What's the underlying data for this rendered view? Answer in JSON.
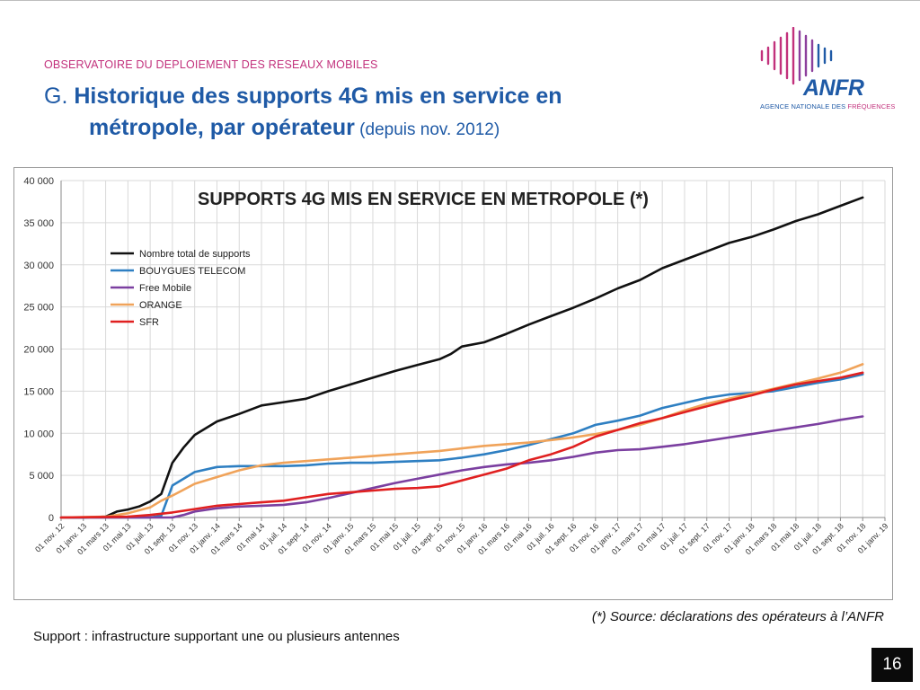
{
  "header": {
    "observatory": "OBSERVATOIRE DU DEPLOIEMENT DES RESEAUX MOBILES",
    "title_prefix": "G. ",
    "title_bold_1": "Historique des supports 4G mis en service en",
    "title_bold_2": "métropole, par opérateur",
    "title_light": " (depuis nov. 2012)"
  },
  "logo": {
    "word": "ANFR",
    "sub_1": "AGENCE NATIONALE DES ",
    "sub_2": "FRÉQUENCES",
    "colors": {
      "blue": "#1f5aa6",
      "pink": "#c2317c"
    }
  },
  "footer": {
    "source": "(*) Source: déclarations des opérateurs à l’ANFR",
    "note": "Support : infrastructure supportant une ou plusieurs antennes",
    "page_number": "16"
  },
  "chart_data": {
    "type": "line",
    "title": "SUPPORTS 4G MIS EN SERVICE EN METROPOLE (*)",
    "xlabel": "",
    "ylabel": "",
    "ylim": [
      0,
      40000
    ],
    "yticks": [
      0,
      5000,
      10000,
      15000,
      20000,
      25000,
      30000,
      35000,
      40000
    ],
    "ytick_labels": [
      "0",
      "5 000",
      "10 000",
      "15 000",
      "20 000",
      "25 000",
      "30 000",
      "35 000",
      "40 000"
    ],
    "grid": true,
    "legend_position": "top-left",
    "x_ticks": [
      "01 nov. 12",
      "01 janv. 13",
      "01 mars 13",
      "01 mai 13",
      "01 juil. 13",
      "01 sept. 13",
      "01 nov. 13",
      "01 janv. 14",
      "01 mars 14",
      "01 mai 14",
      "01 juil. 14",
      "01 sept. 14",
      "01 nov. 14",
      "01 janv. 15",
      "01 mars 15",
      "01 mai 15",
      "01 juil. 15",
      "01 sept. 15",
      "01 nov. 15",
      "01 janv. 16",
      "01 mars 16",
      "01 mai 16",
      "01 juil. 16",
      "01 sept. 16",
      "01 nov. 16",
      "01 janv. 17",
      "01 mars 17",
      "01 mai 17",
      "01 juil. 17",
      "01 sept. 17",
      "01 nov. 17",
      "01 janv. 18",
      "01 mars 18",
      "01 mai 18",
      "01 juil. 18",
      "01 sept. 18",
      "01 nov. 18",
      "01 janv. 19"
    ],
    "series": [
      {
        "name": "Nombre total de supports",
        "color": "#111111",
        "points": [
          [
            0,
            0
          ],
          [
            2,
            0
          ],
          [
            4,
            100
          ],
          [
            5,
            700
          ],
          [
            6,
            950
          ],
          [
            7,
            1300
          ],
          [
            8,
            1900
          ],
          [
            9,
            2800
          ],
          [
            10,
            6500
          ],
          [
            11,
            8300
          ],
          [
            12,
            9800
          ],
          [
            13,
            10600
          ],
          [
            14,
            11400
          ],
          [
            16,
            12300
          ],
          [
            18,
            13300
          ],
          [
            20,
            13700
          ],
          [
            22,
            14100
          ],
          [
            24,
            15000
          ],
          [
            26,
            15800
          ],
          [
            28,
            16600
          ],
          [
            30,
            17400
          ],
          [
            32,
            18100
          ],
          [
            34,
            18800
          ],
          [
            35,
            19400
          ],
          [
            36,
            20300
          ],
          [
            38,
            20800
          ],
          [
            40,
            21800
          ],
          [
            42,
            22900
          ],
          [
            44,
            23900
          ],
          [
            46,
            24900
          ],
          [
            48,
            26000
          ],
          [
            50,
            27200
          ],
          [
            52,
            28200
          ],
          [
            54,
            29600
          ],
          [
            56,
            30600
          ],
          [
            58,
            31600
          ],
          [
            60,
            32600
          ],
          [
            62,
            33300
          ],
          [
            64,
            34200
          ],
          [
            66,
            35200
          ],
          [
            68,
            36000
          ],
          [
            70,
            37000
          ],
          [
            72,
            38000
          ]
        ]
      },
      {
        "name": "BOUYGUES TELECOM",
        "color": "#2e7fc2",
        "points": [
          [
            0,
            0
          ],
          [
            8,
            0
          ],
          [
            9,
            200
          ],
          [
            10,
            3800
          ],
          [
            11,
            4600
          ],
          [
            12,
            5400
          ],
          [
            14,
            6000
          ],
          [
            16,
            6100
          ],
          [
            18,
            6100
          ],
          [
            20,
            6100
          ],
          [
            22,
            6200
          ],
          [
            24,
            6400
          ],
          [
            26,
            6500
          ],
          [
            28,
            6500
          ],
          [
            30,
            6600
          ],
          [
            32,
            6700
          ],
          [
            34,
            6800
          ],
          [
            36,
            7100
          ],
          [
            38,
            7500
          ],
          [
            40,
            8000
          ],
          [
            42,
            8600
          ],
          [
            44,
            9300
          ],
          [
            46,
            10000
          ],
          [
            48,
            11000
          ],
          [
            50,
            11500
          ],
          [
            52,
            12100
          ],
          [
            54,
            13000
          ],
          [
            56,
            13600
          ],
          [
            58,
            14200
          ],
          [
            60,
            14600
          ],
          [
            62,
            14800
          ],
          [
            64,
            15000
          ],
          [
            66,
            15500
          ],
          [
            68,
            16000
          ],
          [
            70,
            16400
          ],
          [
            72,
            17000
          ]
        ]
      },
      {
        "name": "Free Mobile",
        "color": "#7b3fa0",
        "points": [
          [
            0,
            0
          ],
          [
            10,
            0
          ],
          [
            11,
            300
          ],
          [
            12,
            700
          ],
          [
            14,
            1100
          ],
          [
            16,
            1300
          ],
          [
            18,
            1400
          ],
          [
            20,
            1500
          ],
          [
            22,
            1800
          ],
          [
            24,
            2300
          ],
          [
            26,
            2900
          ],
          [
            28,
            3500
          ],
          [
            30,
            4100
          ],
          [
            32,
            4600
          ],
          [
            34,
            5100
          ],
          [
            36,
            5600
          ],
          [
            38,
            6000
          ],
          [
            40,
            6300
          ],
          [
            42,
            6500
          ],
          [
            44,
            6800
          ],
          [
            46,
            7200
          ],
          [
            48,
            7700
          ],
          [
            50,
            8000
          ],
          [
            52,
            8100
          ],
          [
            54,
            8400
          ],
          [
            56,
            8700
          ],
          [
            58,
            9100
          ],
          [
            60,
            9500
          ],
          [
            62,
            9900
          ],
          [
            64,
            10300
          ],
          [
            66,
            10700
          ],
          [
            68,
            11100
          ],
          [
            70,
            11600
          ],
          [
            72,
            12000
          ]
        ]
      },
      {
        "name": "ORANGE",
        "color": "#f0a35a",
        "points": [
          [
            0,
            0
          ],
          [
            4,
            100
          ],
          [
            6,
            500
          ],
          [
            8,
            1200
          ],
          [
            9,
            2000
          ],
          [
            10,
            2600
          ],
          [
            11,
            3300
          ],
          [
            12,
            4000
          ],
          [
            14,
            4800
          ],
          [
            16,
            5600
          ],
          [
            18,
            6200
          ],
          [
            20,
            6500
          ],
          [
            22,
            6700
          ],
          [
            24,
            6900
          ],
          [
            26,
            7100
          ],
          [
            28,
            7300
          ],
          [
            30,
            7500
          ],
          [
            32,
            7700
          ],
          [
            34,
            7900
          ],
          [
            36,
            8200
          ],
          [
            38,
            8500
          ],
          [
            40,
            8700
          ],
          [
            42,
            8900
          ],
          [
            44,
            9200
          ],
          [
            46,
            9500
          ],
          [
            48,
            9900
          ],
          [
            50,
            10400
          ],
          [
            52,
            11000
          ],
          [
            54,
            11800
          ],
          [
            56,
            12700
          ],
          [
            58,
            13500
          ],
          [
            60,
            14100
          ],
          [
            62,
            14700
          ],
          [
            64,
            15300
          ],
          [
            66,
            15900
          ],
          [
            68,
            16500
          ],
          [
            70,
            17200
          ],
          [
            72,
            18200
          ]
        ]
      },
      {
        "name": "SFR",
        "color": "#e02020",
        "points": [
          [
            0,
            0
          ],
          [
            6,
            100
          ],
          [
            8,
            300
          ],
          [
            10,
            600
          ],
          [
            12,
            1000
          ],
          [
            14,
            1400
          ],
          [
            16,
            1600
          ],
          [
            18,
            1800
          ],
          [
            20,
            2000
          ],
          [
            22,
            2400
          ],
          [
            24,
            2800
          ],
          [
            26,
            3000
          ],
          [
            28,
            3200
          ],
          [
            30,
            3400
          ],
          [
            32,
            3500
          ],
          [
            34,
            3700
          ],
          [
            36,
            4400
          ],
          [
            38,
            5100
          ],
          [
            40,
            5800
          ],
          [
            42,
            6800
          ],
          [
            44,
            7500
          ],
          [
            46,
            8400
          ],
          [
            48,
            9600
          ],
          [
            50,
            10400
          ],
          [
            52,
            11200
          ],
          [
            54,
            11800
          ],
          [
            56,
            12500
          ],
          [
            58,
            13200
          ],
          [
            60,
            13900
          ],
          [
            62,
            14500
          ],
          [
            64,
            15200
          ],
          [
            66,
            15800
          ],
          [
            68,
            16200
          ],
          [
            70,
            16600
          ],
          [
            72,
            17200
          ]
        ]
      }
    ]
  }
}
